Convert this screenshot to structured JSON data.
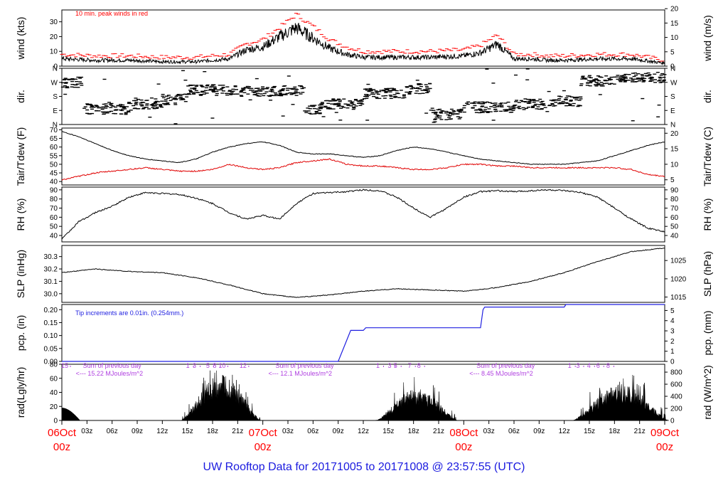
{
  "footer": "UW Rooftop Data for 20171005  to  20171008 @ 23:57:55  (UTC)",
  "colors": {
    "ink": "#000000",
    "peak": "#ff0000",
    "dew": "#e00000",
    "precip": "#2020e0",
    "annotation_radiation": "#b040e0",
    "date_labels": "#ff0000",
    "footer": "#1a1adf"
  },
  "chart_data": [
    {
      "type": "line",
      "name": "wind",
      "ylabel": "wind (kts)",
      "ylabel_right": "wind (m/s)",
      "ylim": [
        0,
        38
      ],
      "y_ticks": [
        "0",
        "10",
        "20",
        "30"
      ],
      "y_ticks_right": [
        "0",
        "5",
        "10",
        "15",
        "20"
      ],
      "annotation": "10 min. peak winds in red",
      "x_hours": [
        0,
        4,
        8,
        12,
        16,
        20,
        22,
        24,
        26,
        28,
        30,
        32,
        34,
        36,
        38,
        40,
        44,
        48,
        50,
        52,
        54,
        56,
        58,
        60,
        64,
        68,
        72
      ],
      "series": [
        {
          "role": "wind",
          "values": [
            5,
            4,
            4,
            3,
            3,
            5,
            11,
            13,
            20,
            26,
            19,
            12,
            8,
            6,
            6,
            6,
            6,
            7,
            9,
            15,
            5,
            5,
            4,
            4,
            5,
            5,
            2
          ]
        },
        {
          "role": "peak",
          "values": [
            8,
            7,
            7,
            6,
            6,
            8,
            15,
            18,
            26,
            35,
            27,
            18,
            13,
            10,
            10,
            10,
            10,
            11,
            14,
            21,
            8,
            8,
            7,
            7,
            8,
            8,
            4
          ]
        }
      ]
    },
    {
      "type": "scatter",
      "name": "dir",
      "ylabel": "dir.",
      "ylabel_right": "dir.",
      "y_ticks": [
        "N",
        "E",
        "S",
        "W",
        "N"
      ],
      "ylim": [
        0,
        360
      ],
      "segments": [
        {
          "from": 0,
          "to": 2.5,
          "deg": 270
        },
        {
          "from": 2.5,
          "to": 8,
          "deg": 100
        },
        {
          "from": 8,
          "to": 12,
          "deg": 135
        },
        {
          "from": 12,
          "to": 15,
          "deg": 160
        },
        {
          "from": 15,
          "to": 21,
          "deg": 220
        },
        {
          "from": 21,
          "to": 29,
          "deg": 215
        },
        {
          "from": 29,
          "to": 31,
          "deg": 100
        },
        {
          "from": 31,
          "to": 36,
          "deg": 130
        },
        {
          "from": 36,
          "to": 41,
          "deg": 200
        },
        {
          "from": 41,
          "to": 44,
          "deg": 230
        },
        {
          "from": 44,
          "to": 48,
          "deg": 65
        },
        {
          "from": 48,
          "to": 54,
          "deg": 110
        },
        {
          "from": 54,
          "to": 58,
          "deg": 130
        },
        {
          "from": 58,
          "to": 62,
          "deg": 150
        },
        {
          "from": 62,
          "to": 66,
          "deg": 280
        },
        {
          "from": 66,
          "to": 72,
          "deg": 300
        }
      ]
    },
    {
      "type": "line",
      "name": "temperature",
      "ylabel": "Tair/Tdew (F)",
      "ylabel_right": "Tair/Tdew (C)",
      "ylim": [
        38,
        71
      ],
      "y_ticks": [
        "40",
        "45",
        "50",
        "55",
        "60",
        "65",
        "70"
      ],
      "y_ticks_right": [
        "5",
        "10",
        "15",
        "20"
      ],
      "x_hours": [
        0,
        2,
        4,
        6,
        8,
        10,
        12,
        14,
        16,
        18,
        20,
        22,
        24,
        26,
        28,
        30,
        32,
        34,
        36,
        38,
        40,
        42,
        44,
        46,
        48,
        50,
        52,
        54,
        56,
        58,
        60,
        62,
        64,
        66,
        68,
        70,
        72
      ],
      "series": [
        {
          "name": "Tair",
          "values": [
            69,
            66,
            62,
            58,
            55,
            53,
            52,
            51,
            53,
            57,
            60,
            62,
            63,
            61,
            57,
            56,
            56,
            55,
            54,
            55,
            58,
            60,
            59,
            57,
            55,
            53,
            52,
            51,
            50,
            50,
            50,
            51,
            52,
            55,
            58,
            61,
            63
          ]
        },
        {
          "name": "Tdew",
          "values": [
            41,
            43,
            45,
            46,
            47,
            48,
            47,
            46,
            46,
            47,
            50,
            48,
            47,
            48,
            51,
            52,
            53,
            50,
            49,
            49,
            48,
            47,
            47,
            48,
            50,
            50,
            49,
            49,
            48,
            48,
            48,
            48,
            48,
            48,
            47,
            44,
            43
          ]
        }
      ]
    },
    {
      "type": "line",
      "name": "rh",
      "ylabel": "RH (%)",
      "ylabel_right": "RH (%)",
      "ylim": [
        33,
        93
      ],
      "y_ticks": [
        "40",
        "50",
        "60",
        "70",
        "80",
        "90"
      ],
      "x_hours": [
        0,
        2,
        4,
        6,
        8,
        10,
        12,
        14,
        16,
        18,
        20,
        22,
        24,
        26,
        28,
        30,
        32,
        34,
        36,
        38,
        40,
        42,
        44,
        46,
        48,
        50,
        52,
        54,
        56,
        58,
        60,
        62,
        64,
        66,
        68,
        70,
        72
      ],
      "series": [
        {
          "values": [
            36,
            55,
            65,
            72,
            82,
            87,
            86,
            85,
            81,
            75,
            65,
            58,
            62,
            58,
            75,
            86,
            87,
            88,
            90,
            89,
            82,
            70,
            60,
            70,
            82,
            88,
            89,
            88,
            89,
            90,
            89,
            87,
            82,
            70,
            58,
            48,
            44
          ]
        }
      ]
    },
    {
      "type": "line",
      "name": "pressure",
      "ylabel": "SLP (inHg)",
      "ylabel_right": "SLP (hPa)",
      "ylim": [
        29.93,
        30.39
      ],
      "y_ticks": [
        "30.0",
        "30.1",
        "30.2",
        "30.3"
      ],
      "y_ticks_right": [
        "1015",
        "1020",
        "1025"
      ],
      "x_hours": [
        0,
        4,
        8,
        12,
        16,
        20,
        24,
        28,
        32,
        36,
        40,
        44,
        48,
        52,
        56,
        60,
        64,
        68,
        72
      ],
      "series": [
        {
          "values": [
            30.17,
            30.2,
            30.18,
            30.17,
            30.13,
            30.07,
            30.0,
            29.97,
            29.99,
            30.02,
            30.04,
            30.03,
            30.02,
            30.05,
            30.1,
            30.17,
            30.26,
            30.34,
            30.37
          ]
        }
      ]
    },
    {
      "type": "line",
      "name": "precip",
      "ylabel": "pcp. (in)",
      "ylabel_right": "pcp. (mm)",
      "ylim": [
        0,
        0.22
      ],
      "y_ticks": [
        "0.00",
        "0.05",
        "0.10",
        "0.15",
        "0.20"
      ],
      "y_ticks_right": [
        "0",
        "1",
        "2",
        "3",
        "4",
        "5"
      ],
      "annotation": "Tip increments are 0.01in. (0.254mm.)",
      "steps": [
        [
          0,
          0
        ],
        [
          33,
          0
        ],
        [
          34.5,
          0.12
        ],
        [
          36,
          0.12
        ],
        [
          36.3,
          0.13
        ],
        [
          50,
          0.13
        ],
        [
          50.3,
          0.2
        ],
        [
          50.5,
          0.21
        ],
        [
          60,
          0.21
        ],
        [
          60.2,
          0.22
        ],
        [
          72,
          0.22
        ]
      ]
    },
    {
      "type": "area",
      "name": "radiation",
      "ylabel": "rad(Lgly/hr)",
      "ylabel_right": "rad (W/m^2)",
      "ylim": [
        0,
        80
      ],
      "y_ticks": [
        "0",
        "20",
        "40",
        "60",
        "80"
      ],
      "y_ticks_right": [
        "0",
        "200",
        "400",
        "600",
        "800"
      ],
      "hour_markers": [
        {
          "hour": 0,
          "label": "15"
        },
        {
          "hour": 14.7,
          "label": "1"
        },
        {
          "hour": 15.5,
          "label": "3"
        },
        {
          "hour": 17.1,
          "label": "5"
        },
        {
          "hour": 17.9,
          "label": "8"
        },
        {
          "hour": 18.8,
          "label": "10"
        },
        {
          "hour": 21.3,
          "label": "12"
        },
        {
          "hour": 37.4,
          "label": "1"
        },
        {
          "hour": 38.8,
          "label": "3"
        },
        {
          "hour": 39.5,
          "label": "5"
        },
        {
          "hour": 41.2,
          "label": "7"
        },
        {
          "hour": 42.3,
          "label": "8"
        },
        {
          "hour": 60.3,
          "label": "1"
        },
        {
          "hour": 61.3,
          "label": "3"
        },
        {
          "hour": 62.6,
          "label": "4"
        },
        {
          "hour": 63.7,
          "label": "6"
        },
        {
          "hour": 64.9,
          "label": "8"
        }
      ],
      "daily_sums": [
        {
          "hour": 1.5,
          "title": "Sum of previous day",
          "text": "<--- 15.22 MJoules/m^2"
        },
        {
          "hour": 24.5,
          "title": "Sum of previous day",
          "text": "<--- 12.1 MJoules/m^2"
        },
        {
          "hour": 48.5,
          "title": "Sum of previous day",
          "text": "<--- 8.45 MJoules/m^2"
        }
      ],
      "days": [
        {
          "start": 14.2,
          "end": 23.8,
          "peak": 65,
          "spikes": [
            78,
            72,
            70,
            68,
            75
          ]
        },
        {
          "start": 37.5,
          "end": 47.3,
          "peak": 45,
          "spikes": [
            55,
            60,
            62,
            70
          ]
        },
        {
          "start": 61.0,
          "end": 72.5,
          "peak": 52,
          "spikes": [
            60,
            75,
            60,
            55,
            70
          ]
        }
      ],
      "tail_start": [
        0,
        18
      ]
    }
  ],
  "x_axis": {
    "hour_ticks": [
      {
        "hour": 3,
        "label": "03z"
      },
      {
        "hour": 6,
        "label": "06z"
      },
      {
        "hour": 9,
        "label": "09z"
      },
      {
        "hour": 12,
        "label": "12z"
      },
      {
        "hour": 15,
        "label": "15z"
      },
      {
        "hour": 18,
        "label": "18z"
      },
      {
        "hour": 21,
        "label": "21z"
      },
      {
        "hour": 27,
        "label": "03z"
      },
      {
        "hour": 30,
        "label": "06z"
      },
      {
        "hour": 33,
        "label": "09z"
      },
      {
        "hour": 36,
        "label": "12z"
      },
      {
        "hour": 39,
        "label": "15z"
      },
      {
        "hour": 42,
        "label": "18z"
      },
      {
        "hour": 45,
        "label": "21z"
      },
      {
        "hour": 51,
        "label": "03z"
      },
      {
        "hour": 54,
        "label": "06z"
      },
      {
        "hour": 57,
        "label": "09z"
      },
      {
        "hour": 60,
        "label": "12z"
      },
      {
        "hour": 63,
        "label": "15z"
      },
      {
        "hour": 66,
        "label": "18z"
      },
      {
        "hour": 69,
        "label": "21z"
      }
    ],
    "day_ticks": [
      {
        "hour": 0,
        "date": "06Oct",
        "time": "00z"
      },
      {
        "hour": 24,
        "date": "07Oct",
        "time": "00z"
      },
      {
        "hour": 48,
        "date": "08Oct",
        "time": "00z"
      },
      {
        "hour": 72,
        "date": "09Oct",
        "time": "00z"
      }
    ]
  }
}
